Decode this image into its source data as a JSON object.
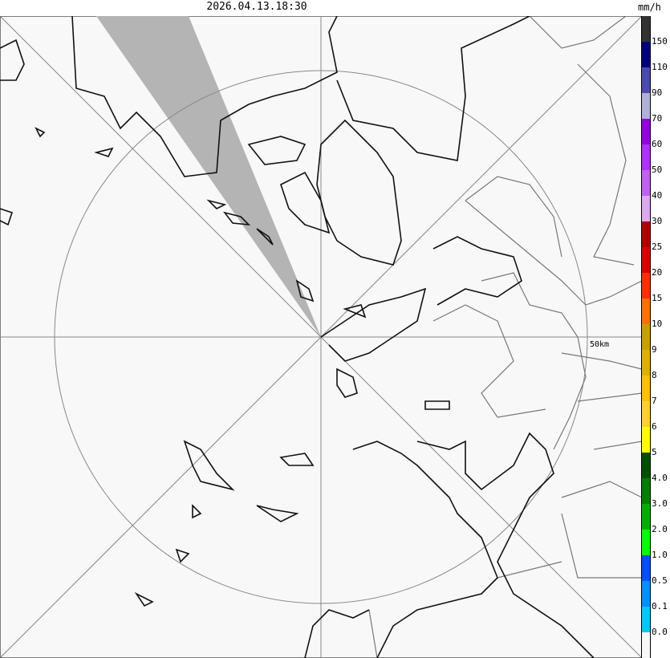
{
  "title": "2026.04.13.18:30",
  "legend": {
    "unit": "mm/h",
    "colors": [
      "#333333",
      "#000080",
      "#4b4baf",
      "#b0b0d8",
      "#9400e0",
      "#b030ff",
      "#c060f0",
      "#dca8f0",
      "#b00000",
      "#dc0000",
      "#ff3000",
      "#ff7000",
      "#c8a000",
      "#e0b000",
      "#ffc000",
      "#ffd030",
      "#ffff00",
      "#005000",
      "#008000",
      "#00b000",
      "#00ff00",
      "#0050ff",
      "#0090ff",
      "#00c8ff",
      "#f8f8f8"
    ],
    "labels": [
      "150",
      "110",
      "90",
      "70",
      "60",
      "50",
      "40",
      "30",
      "25",
      "20",
      "15",
      "10",
      "9",
      "8",
      "7",
      "6",
      "5",
      "4.0",
      "3.0",
      "2.0",
      "1.0",
      "0.5",
      "0.1",
      "0.0"
    ]
  },
  "map": {
    "range_label": "50km",
    "background": "#f8f8f8",
    "blocked_sector_color": "#b4b4b4"
  }
}
